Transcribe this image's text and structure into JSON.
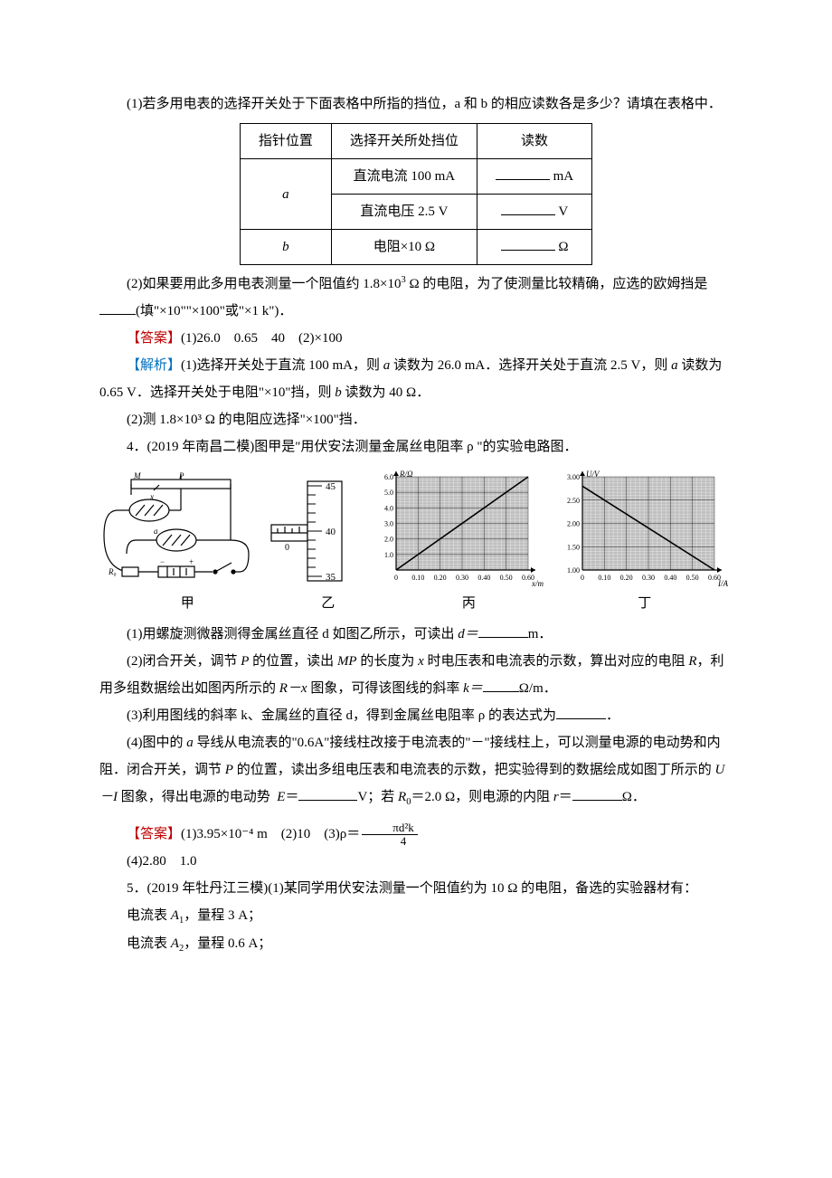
{
  "q1": {
    "text": "(1)若多用电表的选择开关处于下面表格中所指的挡位，a 和 b 的相应读数各是多少？请填在表格中．"
  },
  "table": {
    "headers": [
      "指针位置",
      "选择开关所处挡位",
      "读数"
    ],
    "rows": [
      {
        "pos": "a",
        "setting": "直流电流 100 mA",
        "unit": "mA"
      },
      {
        "pos": "",
        "setting": "直流电压 2.5 V",
        "unit": "V"
      },
      {
        "pos": "b",
        "setting": "电阻×10 Ω",
        "unit": "Ω"
      }
    ],
    "header_bg": "#ffffff",
    "border_color": "#000000"
  },
  "q2": {
    "text_a": "(2)如果要用此多用电表测量一个阻值约 1.8×10",
    "text_b": " Ω 的电阻，为了使测量比较精确，应选的欧姆挡是",
    "text_c": "(填\"×10\"\"×100\"或\"×1 k\")．"
  },
  "ans1": {
    "label": "【答案】",
    "text": "(1)26.0　0.65　40　(2)×100"
  },
  "ana1": {
    "label": "【解析】",
    "line1a": "(1)选择开关处于直流 100 mA，则 ",
    "line1b": " 读数为 26.0 mA．选择开关处于直流 2.5 V，则 ",
    "line1c": " 读数为 0.65 V．选择开关处于电阻\"×10\"挡，则 ",
    "line1d": " 读数为 40 Ω．",
    "line2": "(2)测 1.8×10³ Ω 的电阻应选择\"×100\"挡．",
    "a": "a",
    "b": "b"
  },
  "q4": {
    "intro": "4．(2019 年南昌二模)图甲是\"用伏安法测量金属丝电阻率 ρ \"的实验电路图．",
    "labels": {
      "jia": "甲",
      "yi": "乙",
      "bing": "丙",
      "ding": "丁"
    },
    "sub1a": "(1)用螺旋测微器测得金属丝直径 d 如图乙所示，可读出 ",
    "sub1b": "m．",
    "d_eq": "d＝",
    "sub2a": "(2)闭合开关，调节 ",
    "sub2b": " 的位置，读出 ",
    "sub2c": " 的长度为 ",
    "sub2d": " 时电压表和电流表的示数，算出对应的电阻 ",
    "sub2e": "，利用多组数据绘出如图丙所示的 ",
    "sub2f": " 图象，可得该图线的斜率 ",
    "sub2g": "Ω/m．",
    "k_eq": "k＝",
    "P": "P",
    "MP": "MP",
    "x": "x",
    "R": "R",
    "Rx": "R－x",
    "sub3": "(3)利用图线的斜率 k、金属丝的直径 d，得到金属丝电阻率 ρ 的表达式为",
    "sub3end": "．",
    "sub4a": "(4)图中的 ",
    "sub4b": " 导线从电流表的\"0.6A\"接线柱改接于电流表的\"－\"接线柱上，可以测量电源的电动势和内阻．闭合开关，调节 ",
    "sub4c": " 的位置，读出多组电压表和电流表的示数，把实验得到的数据绘成如图丁所示的 ",
    "sub4d": " 图象，得出电源的电动势 ",
    "sub4e": "V；若 ",
    "sub4f": "＝2.0 Ω，则电源的内阻 ",
    "sub4g": "Ω．",
    "a": "a",
    "UI": "U－I",
    "E": "E",
    "Eeq": "＝",
    "R0": "R",
    "r": "r",
    "req": "＝",
    "zero": "0"
  },
  "ans4": {
    "label": "【答案】",
    "part1": "(1)3.95×10⁻⁴ m　(2)10　(3)ρ＝",
    "frac_num": "πd²k",
    "frac_den": "4",
    "part2": "(4)2.80　1.0"
  },
  "q5": {
    "intro": "5．(2019 年牡丹江三模)(1)某同学用伏安法测量一个阻值约为 10 Ω 的电阻，备选的实验器材有：",
    "item1a": "电流表 ",
    "item1b": "，量程 3 A；",
    "item2a": "电流表 ",
    "item2b": "，量程 0.6 A；",
    "A": "A",
    "s1": "1",
    "s2": "2"
  },
  "chart_bing": {
    "type": "line",
    "xlabel": "x/m",
    "ylabel": "R/Ω",
    "xlim": [
      0,
      0.6
    ],
    "ylim": [
      0,
      6.0
    ],
    "xtick_vals": [
      0,
      0.1,
      0.2,
      0.3,
      0.4,
      0.5,
      0.6
    ],
    "ytick_vals": [
      0,
      1.0,
      2.0,
      3.0,
      4.0,
      5.0,
      6.0
    ],
    "line_color": "#000000",
    "grid_color": "#808080",
    "bg_fill": "#bfbfbf",
    "points": [
      [
        0,
        0
      ],
      [
        0.6,
        6.0
      ]
    ]
  },
  "chart_ding": {
    "type": "line",
    "xlabel": "I/A",
    "ylabel": "U/V",
    "xlim": [
      0,
      0.6
    ],
    "ylim": [
      1.0,
      3.0
    ],
    "xtick_vals": [
      0,
      0.1,
      0.2,
      0.3,
      0.4,
      0.5,
      0.6
    ],
    "ytick_vals": [
      1.0,
      1.5,
      2.0,
      2.5,
      3.0
    ],
    "line_color": "#000000",
    "grid_color": "#808080",
    "bg_fill": "#bfbfbf",
    "points": [
      [
        0,
        2.8
      ],
      [
        0.6,
        1.0
      ]
    ]
  },
  "micrometer": {
    "main_ticks": [
      35,
      40,
      45
    ],
    "reading_line_y": 39.5
  }
}
